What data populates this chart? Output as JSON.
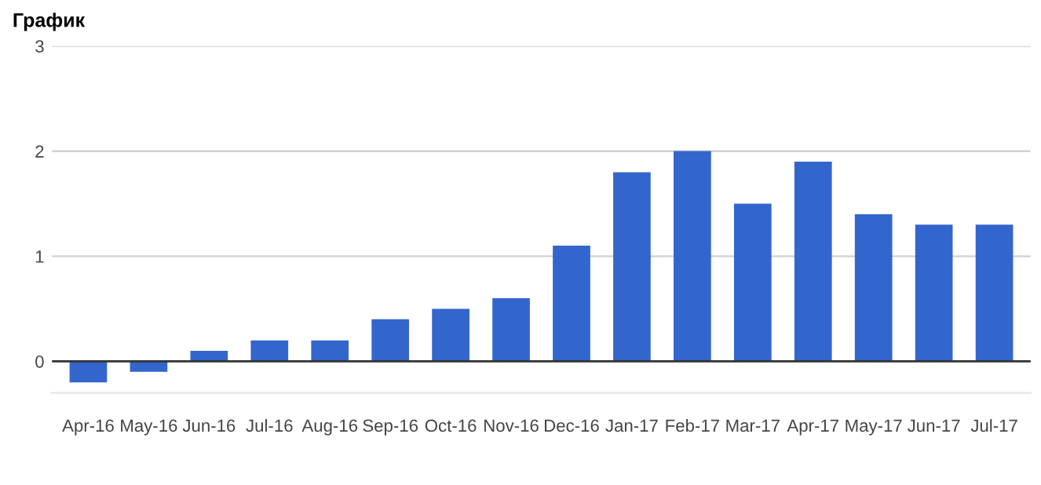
{
  "chart_data": {
    "type": "bar",
    "title": "График",
    "categories": [
      "Apr-16",
      "May-16",
      "Jun-16",
      "Jul-16",
      "Aug-16",
      "Sep-16",
      "Oct-16",
      "Nov-16",
      "Dec-16",
      "Jan-17",
      "Feb-17",
      "Mar-17",
      "Apr-17",
      "May-17",
      "Jun-17",
      "Jul-17"
    ],
    "values": [
      -0.2,
      -0.1,
      0.1,
      0.2,
      0.2,
      0.4,
      0.5,
      0.6,
      1.1,
      1.8,
      2.0,
      1.5,
      1.9,
      1.4,
      1.3,
      1.3
    ],
    "color": "#3366cc",
    "ylim": [
      -0.3,
      3
    ],
    "yticks": [
      0,
      1,
      2,
      3
    ],
    "grid": "y",
    "legend": false
  }
}
